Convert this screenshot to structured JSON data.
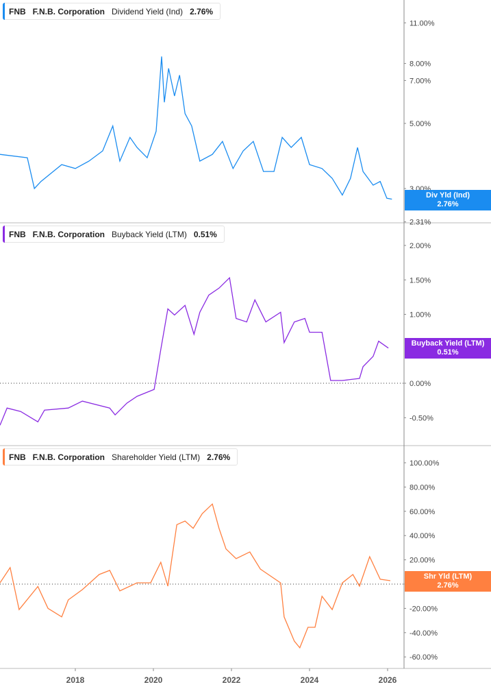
{
  "panels": [
    {
      "ticker": "FNB",
      "company": "F.N.B. Corporation",
      "metric": "Dividend Yield (Ind)",
      "value": "2.76%",
      "badge_label": "Div Yld (Ind)",
      "badge_value": "2.76%",
      "color": "#1a8cf0"
    },
    {
      "ticker": "FNB",
      "company": "F.N.B. Corporation",
      "metric": "Buyback Yield (LTM)",
      "value": "0.51%",
      "badge_label": "Buyback Yield (LTM)",
      "badge_value": "0.51%",
      "color": "#8a2be2"
    },
    {
      "ticker": "FNB",
      "company": "F.N.B. Corporation",
      "metric": "Shareholder Yield (LTM)",
      "value": "2.76%",
      "badge_label": "Shr Yld (LTM)",
      "badge_value": "2.76%",
      "color": "#ff8040"
    }
  ],
  "chart_data": [
    {
      "type": "line",
      "scale": "log",
      "yticks": [
        "11.00%",
        "8.00%",
        "7.00%",
        "5.00%",
        "3.00%",
        "2.31%"
      ],
      "ytick_values": [
        11,
        8,
        7,
        5,
        3,
        2.31
      ],
      "ylim": [
        2.31,
        12.5
      ],
      "x": [
        2016.07,
        2016.77,
        2016.95,
        2017.12,
        2017.65,
        2018.0,
        2018.35,
        2018.7,
        2018.96,
        2019.14,
        2019.4,
        2019.58,
        2019.84,
        2020.07,
        2020.21,
        2020.28,
        2020.39,
        2020.54,
        2020.67,
        2020.81,
        2020.98,
        2021.19,
        2021.51,
        2021.77,
        2022.04,
        2022.3,
        2022.56,
        2022.82,
        2023.09,
        2023.3,
        2023.53,
        2023.79,
        2024.0,
        2024.32,
        2024.58,
        2024.84,
        2025.05,
        2025.23,
        2025.37,
        2025.63,
        2025.81,
        2025.98,
        2026.11
      ],
      "y": [
        3.92,
        3.82,
        3.0,
        3.17,
        3.62,
        3.51,
        3.72,
        4.03,
        4.9,
        3.72,
        4.48,
        4.14,
        3.82,
        4.7,
        8.45,
        5.9,
        7.7,
        6.2,
        7.3,
        5.4,
        4.9,
        3.72,
        3.92,
        4.34,
        3.51,
        4.03,
        4.34,
        3.43,
        3.43,
        4.48,
        4.14,
        4.48,
        3.62,
        3.51,
        3.25,
        2.85,
        3.25,
        4.14,
        3.43,
        3.08,
        3.17,
        2.78,
        2.76
      ]
    },
    {
      "type": "line",
      "yticks": [
        "2.00%",
        "1.50%",
        "1.00%",
        "0.00%",
        "-0.50%"
      ],
      "ytick_values": [
        2,
        1.5,
        1,
        0,
        -0.5
      ],
      "ylim": [
        -0.7,
        2.3
      ],
      "zero_line": true,
      "x": [
        2016.07,
        2016.25,
        2016.6,
        2017.04,
        2017.21,
        2017.82,
        2018.18,
        2018.88,
        2019.02,
        2019.32,
        2019.58,
        2020.02,
        2020.19,
        2020.37,
        2020.54,
        2020.81,
        2021.04,
        2021.19,
        2021.42,
        2021.68,
        2021.95,
        2022.12,
        2022.39,
        2022.6,
        2022.88,
        2023.26,
        2023.35,
        2023.61,
        2023.88,
        2024.0,
        2024.32,
        2024.54,
        2024.84,
        2025.28,
        2025.37,
        2025.63,
        2025.77,
        2026.02
      ],
      "y": [
        -0.61,
        -0.36,
        -0.41,
        -0.56,
        -0.39,
        -0.36,
        -0.26,
        -0.36,
        -0.46,
        -0.29,
        -0.19,
        -0.09,
        0.49,
        1.08,
        0.99,
        1.13,
        0.71,
        1.03,
        1.28,
        1.38,
        1.53,
        0.94,
        0.89,
        1.21,
        0.89,
        1.03,
        0.59,
        0.89,
        0.94,
        0.74,
        0.74,
        0.04,
        0.04,
        0.07,
        0.24,
        0.39,
        0.61,
        0.51
      ]
    },
    {
      "type": "line",
      "yticks": [
        "100.00%",
        "80.00%",
        "60.00%",
        "40.00%",
        "20.00%",
        "0.00%",
        "-20.00%",
        "-40.00%",
        "-60.00%"
      ],
      "ytick_values": [
        100,
        80,
        60,
        40,
        20,
        0,
        -20,
        -40,
        -60
      ],
      "ylim": [
        -70,
        105
      ],
      "zero_line": true,
      "x": [
        2016.07,
        2016.33,
        2016.56,
        2017.04,
        2017.3,
        2017.65,
        2017.82,
        2018.18,
        2018.61,
        2018.88,
        2019.14,
        2019.58,
        2019.93,
        2020.19,
        2020.37,
        2020.6,
        2020.81,
        2021.02,
        2021.25,
        2021.51,
        2021.68,
        2021.86,
        2022.12,
        2022.47,
        2022.74,
        2023.26,
        2023.35,
        2023.61,
        2023.75,
        2023.96,
        2024.14,
        2024.32,
        2024.58,
        2024.84,
        2025.11,
        2025.28,
        2025.54,
        2025.81,
        2026.07
      ],
      "y": [
        1,
        13.6,
        -21,
        -2,
        -20,
        -27,
        -13,
        -4.5,
        7.9,
        11.3,
        -5.6,
        1.1,
        1.1,
        18,
        -1.7,
        49,
        52,
        46,
        58,
        66,
        46,
        29,
        21,
        26.5,
        12.4,
        1,
        -27,
        -47,
        -52.5,
        -35.6,
        -35.6,
        -10,
        -21,
        1,
        7.9,
        -1.7,
        22.6,
        4,
        2.8
      ]
    }
  ],
  "x_axis": {
    "ticks": [
      "2018",
      "2020",
      "2022",
      "2024",
      "2026"
    ],
    "tick_values": [
      2018,
      2020,
      2022,
      2024,
      2026
    ]
  }
}
